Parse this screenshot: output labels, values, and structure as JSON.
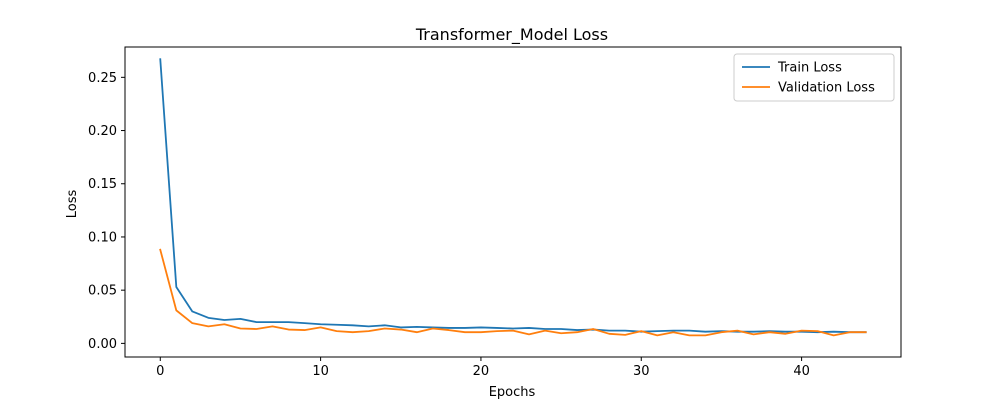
{
  "chart_data": {
    "type": "line",
    "title": "Transformer_Model Loss",
    "xlabel": "Epochs",
    "ylabel": "Loss",
    "xlim": [
      -2.2,
      46.2
    ],
    "ylim": [
      -0.0128,
      0.2785
    ],
    "xticks": [
      0,
      10,
      20,
      30,
      40
    ],
    "yticks": [
      0.0,
      0.05,
      0.1,
      0.15,
      0.2,
      0.25
    ],
    "ytick_labels": [
      "0.00",
      "0.05",
      "0.10",
      "0.15",
      "0.20",
      "0.25"
    ],
    "grid": false,
    "legend_position": "top-right",
    "x": [
      0,
      1,
      2,
      3,
      4,
      5,
      6,
      7,
      8,
      9,
      10,
      11,
      12,
      13,
      14,
      15,
      16,
      17,
      18,
      19,
      20,
      21,
      22,
      23,
      24,
      25,
      26,
      27,
      28,
      29,
      30,
      31,
      32,
      33,
      34,
      35,
      36,
      37,
      38,
      39,
      40,
      41,
      42,
      43,
      44
    ],
    "series": [
      {
        "name": "Train Loss",
        "color": "#1f77b4",
        "values": [
          0.267,
          0.053,
          0.03,
          0.024,
          0.022,
          0.023,
          0.02,
          0.02,
          0.02,
          0.019,
          0.018,
          0.0175,
          0.017,
          0.016,
          0.017,
          0.015,
          0.0155,
          0.015,
          0.0145,
          0.0145,
          0.015,
          0.0145,
          0.014,
          0.0145,
          0.0135,
          0.0135,
          0.0125,
          0.013,
          0.012,
          0.012,
          0.011,
          0.0115,
          0.012,
          0.012,
          0.011,
          0.0115,
          0.011,
          0.011,
          0.0115,
          0.011,
          0.011,
          0.0105,
          0.011,
          0.0105,
          0.0105
        ]
      },
      {
        "name": "Validation Loss",
        "color": "#ff7f0e",
        "values": [
          0.088,
          0.031,
          0.019,
          0.016,
          0.018,
          0.014,
          0.0135,
          0.016,
          0.013,
          0.0125,
          0.015,
          0.0115,
          0.0105,
          0.0115,
          0.014,
          0.013,
          0.0105,
          0.014,
          0.0125,
          0.0105,
          0.0105,
          0.0115,
          0.012,
          0.0085,
          0.012,
          0.0095,
          0.0105,
          0.0135,
          0.009,
          0.008,
          0.0115,
          0.0075,
          0.0105,
          0.0075,
          0.0075,
          0.0105,
          0.012,
          0.0085,
          0.0105,
          0.009,
          0.012,
          0.0115,
          0.0075,
          0.0105,
          0.0105
        ]
      }
    ]
  }
}
